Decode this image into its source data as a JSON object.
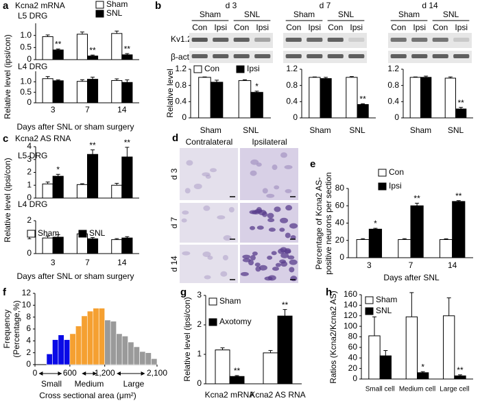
{
  "blots": {
    "panel": "b",
    "rows": [
      "Kv1.2",
      "β-actin"
    ],
    "panels": [
      {
        "title": "d 3",
        "groups": [
          "Sham",
          "SNL"
        ],
        "lanes": [
          "Con",
          "Ipsi",
          "Con",
          "Ipsi"
        ]
      },
      {
        "title": "d 7",
        "groups": [
          "Sham",
          "SNL"
        ],
        "lanes": [
          "Con",
          "Ipsi",
          "Con",
          "Ipsi"
        ]
      },
      {
        "title": "d 14",
        "groups": [
          "Sham",
          "SNL"
        ],
        "lanes": [
          "Con",
          "Ipsi",
          "Con",
          "Ipsi"
        ]
      }
    ]
  },
  "micrographs": {
    "panel": "d",
    "columns": [
      "Contralateral",
      "Ipsilateral"
    ],
    "rows": [
      "d 3",
      "d 7",
      "d 14"
    ]
  },
  "chart_data": [
    {
      "type": "bar",
      "panel": "a",
      "title": "Kcna2 mRNA",
      "subtitle": "L5 DRG",
      "ylabel": "Relative level (ipsi/con)",
      "categories": [
        null,
        null,
        null
      ],
      "ylim": [
        0,
        1.5
      ],
      "yticks": [
        0,
        0.5,
        {
          "value": 1,
          "label": "1.0"
        }
      ],
      "series": [
        {
          "name": "Sham",
          "color": "#ffffff",
          "values": [
            0.95,
            1.05,
            1.08
          ],
          "errors": [
            0.07,
            0.09,
            0.1
          ]
        },
        {
          "name": "SNL",
          "color": "#000000",
          "values": [
            0.4,
            0.15,
            0.2
          ],
          "errors": [
            0.04,
            0.04,
            0.05
          ],
          "annotations": [
            "**",
            "**",
            "**"
          ]
        }
      ]
    },
    {
      "type": "bar",
      "subtitle": "L4 DRG",
      "categories": [
        "3",
        "7",
        "14"
      ],
      "xlabel": "Days after SNL or sham surgery",
      "ylim": [
        0,
        1.5
      ],
      "yticks": [
        0,
        0.5,
        {
          "value": 1,
          "label": "1.0"
        }
      ],
      "series": [
        {
          "color": "#ffffff",
          "values": [
            1.15,
            1.02,
            1.06
          ],
          "errors": [
            0.1,
            0.08,
            0.08
          ]
        },
        {
          "color": "#000000",
          "values": [
            1.05,
            1.12,
            0.97
          ],
          "errors": [
            0.04,
            0.1,
            0.12
          ]
        }
      ]
    },
    {
      "type": "bar",
      "ylabel": "Relative level",
      "categories": [
        "Sham",
        "SNL"
      ],
      "ylim": [
        0,
        1.2
      ],
      "yticks": [
        0,
        0.4,
        0.8,
        1.2
      ],
      "series": [
        {
          "name": "Con",
          "color": "#ffffff",
          "values": [
            1.0,
            0.92
          ],
          "errors": [
            0.01,
            0.02
          ]
        },
        {
          "name": "Ipsi",
          "color": "#000000",
          "values": [
            0.88,
            0.63
          ],
          "errors": [
            0.05,
            0.03
          ],
          "annotations": [
            null,
            "*"
          ]
        }
      ]
    },
    {
      "type": "bar",
      "categories": [
        "Sham",
        "SNL"
      ],
      "ylim": [
        0,
        1.2
      ],
      "yticks": [
        0,
        0.4,
        0.8,
        1.2
      ],
      "series": [
        {
          "color": "#ffffff",
          "values": [
            1.0,
            1.0
          ],
          "errors": [
            0.01,
            0.02
          ]
        },
        {
          "color": "#000000",
          "values": [
            0.97,
            0.33
          ],
          "errors": [
            0.03,
            0.02
          ],
          "annotations": [
            null,
            "**"
          ]
        }
      ]
    },
    {
      "type": "bar",
      "categories": [
        "Sham",
        "SNL"
      ],
      "ylim": [
        0,
        1.2
      ],
      "yticks": [
        0,
        0.4,
        0.8,
        1.2
      ],
      "series": [
        {
          "color": "#ffffff",
          "values": [
            1.0,
            0.98
          ],
          "errors": [
            0.01,
            0.03
          ]
        },
        {
          "color": "#000000",
          "values": [
            1.0,
            0.22
          ],
          "errors": [
            0.03,
            0.04
          ],
          "annotations": [
            null,
            "**"
          ]
        }
      ]
    },
    {
      "type": "bar",
      "panel": "c",
      "title": "Kcna2 AS RNA",
      "subtitle": "L5 DRG",
      "ylabel": "Relative level (ipsi/con)",
      "categories": [
        null,
        null,
        null
      ],
      "ylim": [
        0,
        4
      ],
      "yticks": [
        0,
        1,
        2,
        3,
        4
      ],
      "series": [
        {
          "color": "#ffffff",
          "values": [
            1.1,
            1.05,
            1.0
          ],
          "errors": [
            0.15,
            0.07,
            0.15
          ]
        },
        {
          "color": "#000000",
          "values": [
            1.7,
            3.4,
            3.2
          ],
          "errors": [
            0.15,
            0.35,
            0.75
          ],
          "annotations": [
            "*",
            "**",
            "**"
          ]
        }
      ]
    },
    {
      "type": "bar",
      "subtitle": "L4 DRG",
      "categories": [
        "3",
        "7",
        "14"
      ],
      "xlabel": "Days after SNL or sham surgery",
      "ylim": [
        0,
        2
      ],
      "yticks": [
        0,
        1,
        2
      ],
      "series": [
        {
          "name": "Sham",
          "color": "#ffffff",
          "values": [
            0.95,
            1.2,
            0.85
          ],
          "errors": [
            0.12,
            0.18,
            0.06
          ]
        },
        {
          "name": "SNL",
          "color": "#000000",
          "values": [
            1.0,
            0.9,
            0.95
          ],
          "errors": [
            0.15,
            0.08,
            0.08
          ]
        }
      ]
    },
    {
      "type": "bar",
      "panel": "e",
      "ylabel": [
        "Percentage of Kcna2 AS-",
        "positive neurons per section"
      ],
      "categories": [
        "3",
        "7",
        "14"
      ],
      "xlabel": "Days after SNL",
      "ylim": [
        0,
        80
      ],
      "yticks": [
        0,
        20,
        40,
        60,
        80
      ],
      "series": [
        {
          "name": "Con",
          "color": "#ffffff",
          "values": [
            21,
            21,
            21
          ],
          "errors": [
            1,
            1,
            0.8
          ]
        },
        {
          "name": "Ipsi",
          "color": "#000000",
          "values": [
            33,
            60,
            65
          ],
          "errors": [
            1,
            3,
            1
          ],
          "annotations": [
            "*",
            "**",
            "**"
          ]
        }
      ]
    },
    {
      "type": "histogram",
      "panel": "f",
      "ylabel": [
        "Frequency",
        "(Percentage,%)"
      ],
      "xlabel": "Cross sectional area (μm²)",
      "bins": [
        200,
        300,
        400,
        500,
        600,
        700,
        800,
        900,
        1000,
        1100,
        1200,
        1300,
        1400,
        1500,
        1600,
        1700,
        1800,
        1900,
        2000,
        2100
      ],
      "values": [
        1.8,
        4.2,
        5.0,
        4.2,
        5.2,
        6.5,
        8.2,
        9.0,
        9.5,
        9.5,
        7.5,
        7.3,
        5.2,
        4.8,
        3.8,
        3.0,
        2.2,
        2.0,
        1.0
      ],
      "colors": [
        "#0a0ae6",
        "#0a0ae6",
        "#0a0ae6",
        "#0a0ae6",
        "#f5a031",
        "#f5a031",
        "#f5a031",
        "#f5a031",
        "#f5a031",
        "#f5a031",
        "#9a9a9a",
        "#9a9a9a",
        "#9a9a9a",
        "#9a9a9a",
        "#9a9a9a",
        "#9a9a9a",
        "#9a9a9a",
        "#9a9a9a",
        "#9a9a9a"
      ],
      "xlim": [
        0,
        2100
      ],
      "xticks": [
        0,
        600,
        {
          "value": 1200,
          "label": "1,200"
        },
        {
          "value": 2100,
          "label": "2,100"
        }
      ],
      "ylim": [
        0,
        12
      ],
      "yticks": [
        0,
        2,
        4,
        6,
        8,
        10,
        12
      ],
      "size_classes": [
        {
          "label": "Small",
          "color": "#0000ff"
        },
        {
          "label": "Medium",
          "color": "#f08c00"
        },
        {
          "label": "Large",
          "color": "#808080"
        }
      ]
    },
    {
      "type": "bar",
      "panel": "g",
      "ylabel": "Relative level (ipsi/con)",
      "categories": [
        "Kcna2 mRNA",
        "Kcna2 AS RNA"
      ],
      "ylim": [
        0,
        3
      ],
      "yticks": [
        0,
        1,
        2,
        3
      ],
      "series": [
        {
          "name": "Sham",
          "color": "#ffffff",
          "values": [
            1.15,
            1.05
          ],
          "errors": [
            0.07,
            0.08
          ]
        },
        {
          "name": "Axotomy",
          "color": "#000000",
          "values": [
            0.25,
            2.3
          ],
          "errors": [
            0.03,
            0.22
          ],
          "annotations": [
            "**",
            "**"
          ]
        }
      ]
    },
    {
      "type": "bar",
      "panel": "h",
      "ylabel": "Ratios (Kcna2/Kcna2 AS)",
      "categories": [
        "Small cell",
        "Medium cell",
        "Large cell"
      ],
      "ylim": [
        0,
        160
      ],
      "yticks": [
        0,
        20,
        40,
        60,
        80,
        100,
        120,
        140,
        160
      ],
      "series": [
        {
          "name": "Sham",
          "color": "#ffffff",
          "values": [
            82,
            118,
            120
          ],
          "errors": [
            36,
            46,
            34
          ]
        },
        {
          "name": "SNL",
          "color": "#000000",
          "values": [
            44,
            12,
            6
          ],
          "errors": [
            10,
            2,
            2
          ],
          "annotations": [
            null,
            "*",
            "**"
          ]
        }
      ]
    }
  ]
}
